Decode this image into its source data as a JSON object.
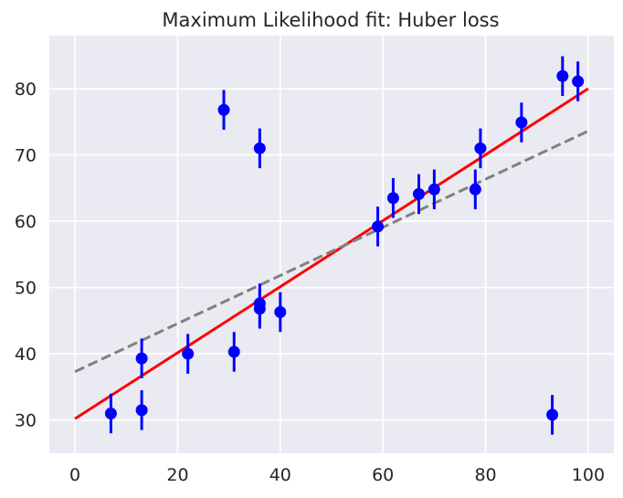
{
  "chart_data": {
    "type": "scatter",
    "title": "Maximum Likelihood fit: Huber loss",
    "xlabel": "",
    "ylabel": "",
    "xlim": [
      -5,
      105
    ],
    "ylim": [
      25,
      88
    ],
    "xticks": [
      0,
      20,
      40,
      60,
      80,
      100
    ],
    "yticks": [
      30,
      40,
      50,
      60,
      70,
      80
    ],
    "grid": true,
    "colors": {
      "background": "#eaeaf2",
      "grid": "#ffffff",
      "points": "#0000ff",
      "huber_fit": "#ff0000",
      "ls_fit": "#808080"
    },
    "points": {
      "x": [
        7,
        13,
        13,
        22,
        29,
        31,
        36,
        36,
        36,
        40,
        59,
        62,
        67,
        70,
        78,
        79,
        87,
        93,
        95,
        98
      ],
      "y": [
        31.0,
        31.5,
        39.3,
        40.0,
        76.8,
        40.3,
        71.0,
        47.6,
        46.8,
        46.3,
        59.2,
        63.5,
        64.1,
        64.8,
        64.8,
        71.0,
        74.9,
        30.8,
        81.9,
        81.1
      ],
      "yerr": 3.0
    },
    "lines": [
      {
        "style": "solid",
        "x": [
          0,
          100
        ],
        "y": [
          30.2,
          80.0
        ]
      },
      {
        "style": "dashed",
        "x": [
          0,
          100
        ],
        "y": [
          37.3,
          73.6
        ]
      }
    ]
  }
}
